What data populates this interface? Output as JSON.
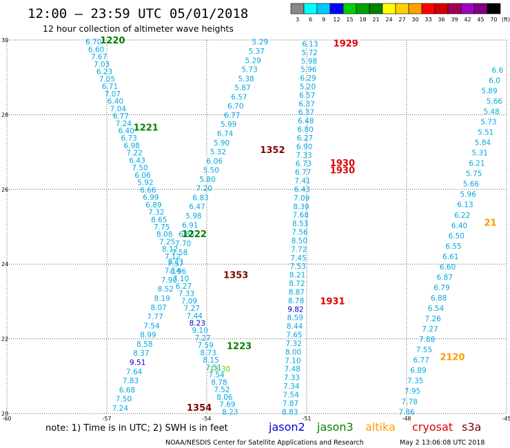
{
  "chart_data": {
    "type": "scatter",
    "title": "12:00 – 23:59 UTC 05/01/2018",
    "subtitle": "12 hour collection of altimeter wave heights",
    "xlim": [
      -60,
      -45
    ],
    "ylim": [
      20,
      30
    ],
    "x_ticks": [
      "-60",
      "-57",
      "-54",
      "-51",
      "-48",
      "-45"
    ],
    "y_ticks": [
      "20",
      "22",
      "24",
      "26",
      "28",
      "30"
    ],
    "grid": true,
    "legend": {
      "unit": "(ft)",
      "levels": [
        "3",
        "6",
        "9",
        "12",
        "15",
        "18",
        "21",
        "24",
        "27",
        "30",
        "33",
        "36",
        "39",
        "42",
        "45",
        "70"
      ],
      "colors": [
        "#888888",
        "#00ffff",
        "#00c8ff",
        "#0000ff",
        "#00d000",
        "#00a000",
        "#008000",
        "#ffff00",
        "#ffd000",
        "#ffa000",
        "#ff0000",
        "#d00000",
        "#a00050",
        "#a000c0",
        "#800080",
        "#000000"
      ]
    },
    "note": "note:  1) Time is in UTC;  2) SWH is in feet",
    "satellites": [
      {
        "name": "jason2",
        "color": "#0000dd"
      },
      {
        "name": "jason3",
        "color": "#008000"
      },
      {
        "name": "altika",
        "color": "#ff9900"
      },
      {
        "name": "cryosat",
        "color": "#dd0000"
      },
      {
        "name": "s3a",
        "color": "#800000"
      }
    ],
    "credit_left": "NOAA/NESDIS Center for Satellite Applications and Research",
    "credit_right": "May  2 13:06:08 UTC 2018",
    "passes": [
      {
        "label": "1220",
        "lon": -57.2,
        "lat": 29.98,
        "color": "#008000"
      },
      {
        "label": "1221",
        "lon": -56.2,
        "lat": 27.65,
        "color": "#008000"
      },
      {
        "label": "1222",
        "lon": -54.75,
        "lat": 24.8,
        "color": "#008000"
      },
      {
        "label": "1223",
        "lon": -53.4,
        "lat": 21.8,
        "color": "#008000"
      },
      {
        "label": "1352",
        "lon": -52.4,
        "lat": 27.05,
        "color": "#800000"
      },
      {
        "label": "1353",
        "lon": -53.5,
        "lat": 23.7,
        "color": "#800000"
      },
      {
        "label": "1354",
        "lon": -54.6,
        "lat": 20.15,
        "color": "#800000"
      },
      {
        "label": "1929",
        "lon": -50.2,
        "lat": 29.9,
        "color": "#dd0000"
      },
      {
        "label": "1930",
        "lon": -50.3,
        "lat": 26.7,
        "color": "#dd0000"
      },
      {
        "label": "1930",
        "lon": -50.3,
        "lat": 26.5,
        "color": "#dd0000"
      },
      {
        "label": "1931",
        "lon": -50.6,
        "lat": 23.0,
        "color": "#dd0000"
      },
      {
        "label": "2120",
        "lon": -47.0,
        "lat": 21.5,
        "color": "#ff9900"
      },
      {
        "label": "21",
        "lon": -45.3,
        "lat": 25.1,
        "color": "#ff9900"
      }
    ],
    "tracks": [
      {
        "name": "jason3-1220-1223",
        "color": "#00a8e0",
        "start": [
          -57.4,
          29.95
        ],
        "end": [
          -53.3,
          20.05
        ],
        "values": [
          "6.70",
          "6.60",
          "7.67",
          "7.03",
          "6.23",
          "7.05",
          "6.71",
          "7.07",
          "6.40",
          "7.04",
          "6.77",
          "7.24",
          "6.40",
          "6.73",
          "6.98",
          "7.22",
          "6.43",
          "7.50",
          "6.06",
          "5.92",
          "6.66",
          "6.99",
          "6.89",
          "7.32",
          "8.65",
          "7.75",
          "8.08",
          "7.25",
          "8.12",
          "7.12",
          "7.57",
          "6.96",
          "7.10",
          "6.27",
          "7.33",
          "7.09",
          "7.27",
          "7.44",
          "8.23",
          "9.10",
          "7.27",
          "7.59",
          "8.73",
          "8.15",
          "7.51",
          "7.54",
          "8.78",
          "7.52",
          "8.06",
          "7.69",
          "8.23"
        ],
        "special": {
          "38": "#0000cc"
        }
      },
      {
        "name": "s3a-1352-1354",
        "color": "#00a8e0",
        "start": [
          -52.4,
          29.95
        ],
        "end": [
          -56.6,
          20.15
        ],
        "values": [
          "5.29",
          "5.37",
          "5.29",
          "5.73",
          "5.38",
          "5.87",
          "6.57",
          "6.70",
          "6.77",
          "5.99",
          "6.74",
          "5.90",
          "5.32",
          "6.06",
          "5.50",
          "5.80",
          "7.20",
          "6.83",
          "6.47",
          "5.98",
          "6.91",
          "6.85",
          "7.70",
          "7.58",
          "8.11",
          "7.14",
          "7.90",
          "8.52",
          "8.19",
          "8.07",
          "7.77",
          "7.54",
          "8.99",
          "8.58",
          "8.37",
          "9.51",
          "7.64",
          "7.83",
          "6.68",
          "7.50",
          "7.24"
        ],
        "special": {
          "35": "#0000cc"
        }
      },
      {
        "name": "s3a-lower",
        "color": "#00a8e0",
        "start": [
          -53.6,
          21.2
        ],
        "end": [
          -53.1,
          20.0
        ],
        "values": [
          "13.30"
        ],
        "special": {
          "0": "#55cc00"
        }
      },
      {
        "name": "cryosat-1929-1931",
        "color": "#00a8e0",
        "start": [
          -50.9,
          29.9
        ],
        "end": [
          -51.5,
          20.05
        ],
        "values": [
          "6.13",
          "5.72",
          "5.98",
          "5.96",
          "6.29",
          "5.20",
          "6.57",
          "6.37",
          "6.37",
          "6.48",
          "6.80",
          "6.27",
          "6.90",
          "7.33",
          "6.73",
          "6.77",
          "7.41",
          "6.43",
          "7.09",
          "8.39",
          "7.68",
          "8.53",
          "7.56",
          "8.50",
          "7.72",
          "7.45",
          "7.53",
          "8.21",
          "8.72",
          "8.87",
          "8.78",
          "9.82",
          "8.59",
          "8.44",
          "7.65",
          "7.32",
          "8.00",
          "7.10",
          "7.48",
          "7.33",
          "7.34",
          "7.54",
          "7.87",
          "8.83"
        ],
        "special": {
          "31": "#0000cc"
        }
      },
      {
        "name": "altika-2120",
        "color": "#00a8e0",
        "start": [
          -45.1,
          29.2
        ],
        "end": [
          -48.0,
          20.05
        ],
        "values": [
          "6.6",
          "6.0",
          "5.89",
          "5.66",
          "5.48",
          "5.73",
          "5.51",
          "5.84",
          "5.31",
          "6.21",
          "5.75",
          "5.66",
          "5.96",
          "6.13",
          "6.22",
          "6.40",
          "6.50",
          "6.55",
          "6.61",
          "6.60",
          "6.87",
          "6.79",
          "6.88",
          "6.54",
          "7.26",
          "7.27",
          "7.88",
          "7.55",
          "6.77",
          "6.89",
          "7.35",
          "7.95",
          "7.78",
          "7.86"
        ],
        "special": {}
      }
    ]
  }
}
